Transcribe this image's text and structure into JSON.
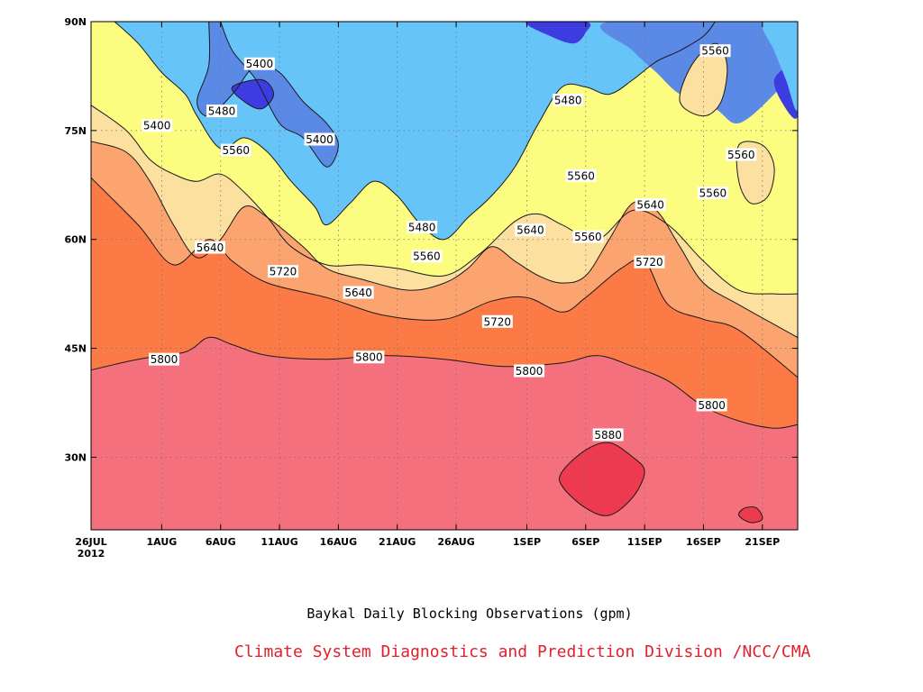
{
  "chart_data": {
    "type": "heatmap",
    "title": "Baykal Daily Blocking Observations (gpm)",
    "credit": "Climate System Diagnostics and Prediction Division /NCC/CMA",
    "x_axis": {
      "range": [
        "2012-07-26",
        "2012-09-24"
      ],
      "ticks": [
        {
          "date": "2012-07-26",
          "label": "26JUL",
          "sublabel": "2012"
        },
        {
          "date": "2012-08-01",
          "label": "1AUG"
        },
        {
          "date": "2012-08-06",
          "label": "6AUG"
        },
        {
          "date": "2012-08-11",
          "label": "11AUG"
        },
        {
          "date": "2012-08-16",
          "label": "16AUG"
        },
        {
          "date": "2012-08-21",
          "label": "21AUG"
        },
        {
          "date": "2012-08-26",
          "label": "26AUG"
        },
        {
          "date": "2012-09-01",
          "label": "1SEP"
        },
        {
          "date": "2012-09-06",
          "label": "6SEP"
        },
        {
          "date": "2012-09-11",
          "label": "11SEP"
        },
        {
          "date": "2012-09-16",
          "label": "16SEP"
        },
        {
          "date": "2012-09-21",
          "label": "21SEP"
        }
      ]
    },
    "y_axis": {
      "range": [
        20,
        90
      ],
      "ticks": [
        {
          "value": 30,
          "label": "30N"
        },
        {
          "value": 45,
          "label": "45N"
        },
        {
          "value": 60,
          "label": "60N"
        },
        {
          "value": 75,
          "label": "75N"
        },
        {
          "value": 90,
          "label": "90N"
        }
      ]
    },
    "grid": "dotted",
    "contour_levels": [
      5320,
      5400,
      5480,
      5560,
      5640,
      5720,
      5800,
      5880
    ],
    "level_colors": {
      "below_5320": "#3c3ce0",
      "5320_5400": "#5a8ae6",
      "5400_5480": "#66c4f8",
      "5480_5560": "#fcfc80",
      "5560_5640": "#fce0a0",
      "5640_5720": "#fca470",
      "5720_5800": "#fc7a46",
      "5800_5880": "#f4707c",
      "above_5880": "#ee3a50"
    },
    "contours": {
      "c5720": [
        [
          0,
          68.5
        ],
        [
          4,
          62
        ],
        [
          7,
          56.5
        ],
        [
          10,
          60
        ],
        [
          12,
          57
        ],
        [
          15,
          54
        ],
        [
          20,
          52
        ],
        [
          25,
          49.5
        ],
        [
          30,
          49
        ],
        [
          34,
          51.5
        ],
        [
          37,
          52
        ],
        [
          40,
          50
        ],
        [
          42,
          52
        ],
        [
          45,
          56
        ],
        [
          47,
          57
        ],
        [
          49,
          51
        ],
        [
          52,
          49
        ],
        [
          55,
          47.5
        ],
        [
          60,
          41
        ]
      ],
      "c5640": [
        [
          0,
          73.5
        ],
        [
          3,
          72
        ],
        [
          5,
          68
        ],
        [
          7,
          62
        ],
        [
          9,
          57.5
        ],
        [
          11,
          60
        ],
        [
          13,
          64.5
        ],
        [
          15,
          63
        ],
        [
          18,
          59
        ],
        [
          20,
          56
        ],
        [
          23,
          54.5
        ],
        [
          27,
          53
        ],
        [
          30,
          54
        ],
        [
          32,
          56
        ],
        [
          34,
          59
        ],
        [
          36,
          57
        ],
        [
          38,
          55
        ],
        [
          40,
          54
        ],
        [
          42,
          55
        ],
        [
          44,
          60
        ],
        [
          46,
          65
        ],
        [
          48,
          64
        ],
        [
          50,
          59
        ],
        [
          52,
          54
        ],
        [
          55,
          51
        ],
        [
          60,
          46.5
        ]
      ],
      "c5560": [
        [
          0,
          78.5
        ],
        [
          3,
          75
        ],
        [
          5,
          71
        ],
        [
          7,
          69
        ],
        [
          9,
          68
        ],
        [
          11,
          69
        ],
        [
          13,
          66.5
        ],
        [
          15,
          63
        ],
        [
          17,
          59
        ],
        [
          20,
          56.5
        ],
        [
          23,
          56.5
        ],
        [
          26,
          56
        ],
        [
          30,
          55
        ],
        [
          33,
          58
        ],
        [
          36,
          62.5
        ],
        [
          38,
          63.5
        ],
        [
          40,
          62
        ],
        [
          43,
          60
        ],
        [
          46,
          64
        ],
        [
          49,
          62
        ],
        [
          52,
          57
        ],
        [
          55,
          53
        ],
        [
          58,
          52.5
        ],
        [
          60,
          52.5
        ]
      ],
      "c5480": [
        [
          2,
          90
        ],
        [
          4,
          87
        ],
        [
          6,
          83
        ],
        [
          8,
          80
        ],
        [
          9,
          77
        ],
        [
          11,
          72.5
        ],
        [
          13,
          74
        ],
        [
          15,
          72
        ],
        [
          17,
          68
        ],
        [
          19,
          64.5
        ],
        [
          20,
          62
        ],
        [
          22,
          65
        ],
        [
          24,
          68
        ],
        [
          26,
          66
        ],
        [
          28,
          62
        ],
        [
          30,
          60
        ],
        [
          32,
          63
        ],
        [
          34,
          66
        ],
        [
          36,
          70
        ],
        [
          38,
          76
        ],
        [
          40,
          81
        ],
        [
          42,
          81
        ],
        [
          44,
          80
        ],
        [
          46,
          82
        ],
        [
          48,
          84.5
        ],
        [
          50,
          86
        ],
        [
          52,
          88
        ],
        [
          53,
          90
        ]
      ],
      "c5400": [
        [
          10,
          90
        ],
        [
          10,
          84
        ],
        [
          9,
          79
        ],
        [
          10,
          77
        ],
        [
          12,
          80
        ],
        [
          14,
          84
        ],
        [
          16,
          83
        ],
        [
          18,
          79
        ],
        [
          20,
          76
        ],
        [
          21,
          73
        ],
        [
          20,
          70
        ],
        [
          18,
          74
        ],
        [
          16,
          76
        ],
        [
          14,
          82
        ],
        [
          12,
          86
        ],
        [
          11,
          90
        ]
      ],
      "c5880": [
        [
          40,
          26
        ],
        [
          42,
          23
        ],
        [
          44,
          22
        ],
        [
          46,
          24.5
        ],
        [
          47,
          28
        ],
        [
          46,
          30
        ],
        [
          44,
          32
        ],
        [
          42,
          31
        ],
        [
          40,
          28
        ]
      ]
    },
    "labels": [
      {
        "text": "5400",
        "x": 14.3,
        "y": 84.2
      },
      {
        "text": "5400",
        "x": 5.6,
        "y": 75.7
      },
      {
        "text": "5400",
        "x": 19.4,
        "y": 73.8
      },
      {
        "text": "5480",
        "x": 11.1,
        "y": 77.7
      },
      {
        "text": "5480",
        "x": 28.1,
        "y": 61.7
      },
      {
        "text": "5480",
        "x": 40.5,
        "y": 79.2
      },
      {
        "text": "5560",
        "x": 12.3,
        "y": 72.3
      },
      {
        "text": "5560",
        "x": 28.5,
        "y": 57.7
      },
      {
        "text": "5560",
        "x": 41.6,
        "y": 68.8
      },
      {
        "text": "5560",
        "x": 42.2,
        "y": 60.4
      },
      {
        "text": "5560",
        "x": 53.0,
        "y": 86.0
      },
      {
        "text": "5560",
        "x": 55.2,
        "y": 71.7
      },
      {
        "text": "5560",
        "x": 52.8,
        "y": 66.4
      },
      {
        "text": "5640",
        "x": 10.1,
        "y": 58.9
      },
      {
        "text": "5640",
        "x": 22.7,
        "y": 52.7
      },
      {
        "text": "5640",
        "x": 37.3,
        "y": 61.3
      },
      {
        "text": "5640",
        "x": 47.5,
        "y": 64.8
      },
      {
        "text": "5720",
        "x": 16.3,
        "y": 55.6
      },
      {
        "text": "5720",
        "x": 34.5,
        "y": 48.7
      },
      {
        "text": "5720",
        "x": 47.4,
        "y": 56.9
      },
      {
        "text": "5800",
        "x": 6.2,
        "y": 43.5
      },
      {
        "text": "5800",
        "x": 23.6,
        "y": 43.8
      },
      {
        "text": "5800",
        "x": 37.2,
        "y": 41.9
      },
      {
        "text": "5800",
        "x": 52.7,
        "y": 37.2
      },
      {
        "text": "5880",
        "x": 43.9,
        "y": 33.1
      }
    ]
  }
}
